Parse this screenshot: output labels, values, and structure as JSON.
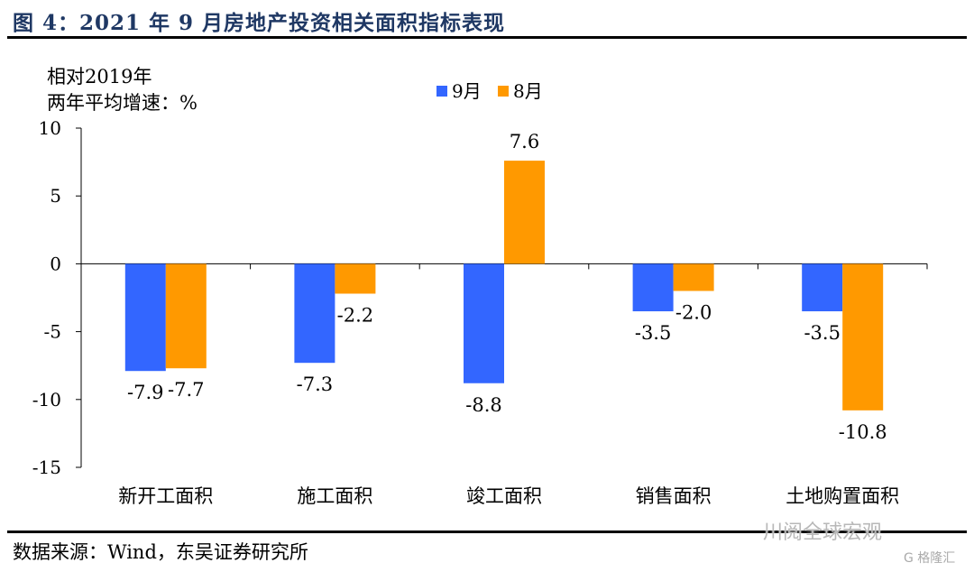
{
  "figure": {
    "title": "图 4：2021 年 9 月房地产投资相关面积指标表现",
    "source": "数据来源：Wind，东吴证券研究所",
    "watermark": "川阅全球宏观",
    "watermark2": "G 格隆汇"
  },
  "colors": {
    "series_9": "#3366ff",
    "series_8": "#ff9900",
    "title": "#1f3864"
  },
  "chart_data": {
    "type": "bar",
    "title": "",
    "ylabel_line1": "相对2019年",
    "ylabel_line2": "两年平均增速：%",
    "categories": [
      "新开工面积",
      "施工面积",
      "竣工面积",
      "销售面积",
      "土地购置面积"
    ],
    "series": [
      {
        "name": "9月",
        "values": [
          -7.9,
          -7.3,
          -8.8,
          -3.5,
          -3.5
        ]
      },
      {
        "name": "8月",
        "values": [
          -7.7,
          -2.2,
          7.6,
          -2.0,
          -10.8
        ]
      }
    ],
    "data_labels": [
      [
        "-7.9",
        "-7.3",
        "-8.8",
        "-3.5",
        "-3.5"
      ],
      [
        "-7.7",
        "-2.2",
        "7.6",
        "-2.0",
        "-10.8"
      ]
    ],
    "ylim": [
      -15,
      10
    ],
    "yticks": [
      10,
      5,
      0,
      -5,
      -10,
      -15
    ],
    "grid": false,
    "legend_position": "top-center"
  }
}
